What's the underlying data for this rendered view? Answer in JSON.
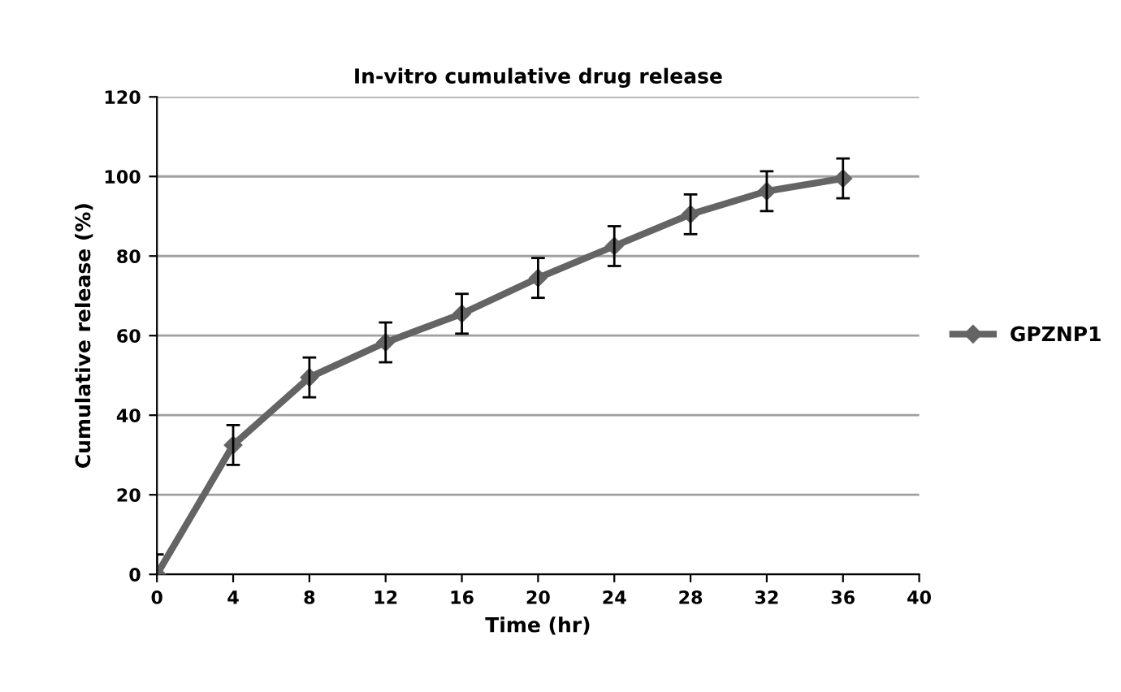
{
  "chart_data": {
    "type": "line",
    "title": "In-vitro cumulative drug release",
    "xlabel": "Time (hr)",
    "ylabel": "Cumulative release (%)",
    "x": [
      0,
      4,
      8,
      12,
      16,
      20,
      24,
      28,
      32,
      36
    ],
    "series": [
      {
        "name": "GPZNP1",
        "color": "#646464",
        "values": [
          0,
          32.5,
          49.5,
          58.3,
          65.5,
          74.5,
          82.5,
          90.5,
          96.3,
          99.5
        ],
        "errors": [
          5,
          5,
          5,
          5,
          5,
          5,
          5,
          5,
          5,
          5
        ]
      }
    ],
    "xlim": [
      0,
      40
    ],
    "xticks": [
      0,
      4,
      8,
      12,
      16,
      20,
      24,
      28,
      32,
      36,
      40
    ],
    "ylim": [
      0,
      120
    ],
    "yticks": [
      0,
      20,
      40,
      60,
      80,
      100,
      120
    ],
    "grid": "y",
    "legend": "right",
    "marker": "diamond",
    "line_style": "solid"
  }
}
